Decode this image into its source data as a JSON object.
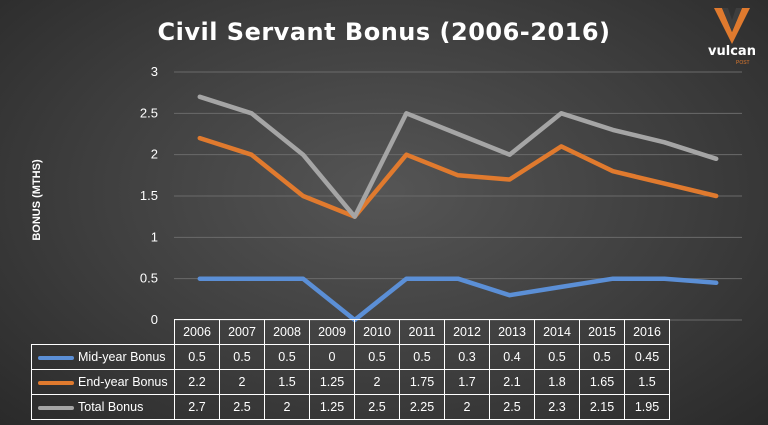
{
  "logo": {
    "name": "vulcan",
    "sub": "POST"
  },
  "chart_data": {
    "type": "line",
    "title": "Civil Servant Bonus (2006-2016)",
    "ylabel": "BONUS (MTHS)",
    "xlabel": "",
    "ylim": [
      0,
      3
    ],
    "yticks": [
      "0",
      "0.5",
      "1",
      "1.5",
      "2",
      "2.5",
      "3"
    ],
    "grid": true,
    "categories": [
      "2006",
      "2007",
      "2008",
      "2009",
      "2010",
      "2011",
      "2012",
      "2013",
      "2014",
      "2015",
      "2016"
    ],
    "series": [
      {
        "name": "Mid-year Bonus",
        "color": "#5b8fd6",
        "values": [
          0.5,
          0.5,
          0.5,
          0,
          0.5,
          0.5,
          0.3,
          0.4,
          0.5,
          0.5,
          0.45
        ],
        "labels": [
          "0.5",
          "0.5",
          "0.5",
          "0",
          "0.5",
          "0.5",
          "0.3",
          "0.4",
          "0.5",
          "0.5",
          "0.45"
        ]
      },
      {
        "name": "End-year Bonus",
        "color": "#e07a2e",
        "values": [
          2.2,
          2,
          1.5,
          1.25,
          2,
          1.75,
          1.7,
          2.1,
          1.8,
          1.65,
          1.5
        ],
        "labels": [
          "2.2",
          "2",
          "1.5",
          "1.25",
          "2",
          "1.75",
          "1.7",
          "2.1",
          "1.8",
          "1.65",
          "1.5"
        ]
      },
      {
        "name": "Total Bonus",
        "color": "#a5a5a5",
        "values": [
          2.7,
          2.5,
          2,
          1.25,
          2.5,
          2.25,
          2,
          2.5,
          2.3,
          2.15,
          1.95
        ],
        "labels": [
          "2.7",
          "2.5",
          "2",
          "1.25",
          "2.5",
          "2.25",
          "2",
          "2.5",
          "2.3",
          "2.15",
          "1.95"
        ]
      }
    ],
    "legend": "data-table"
  }
}
